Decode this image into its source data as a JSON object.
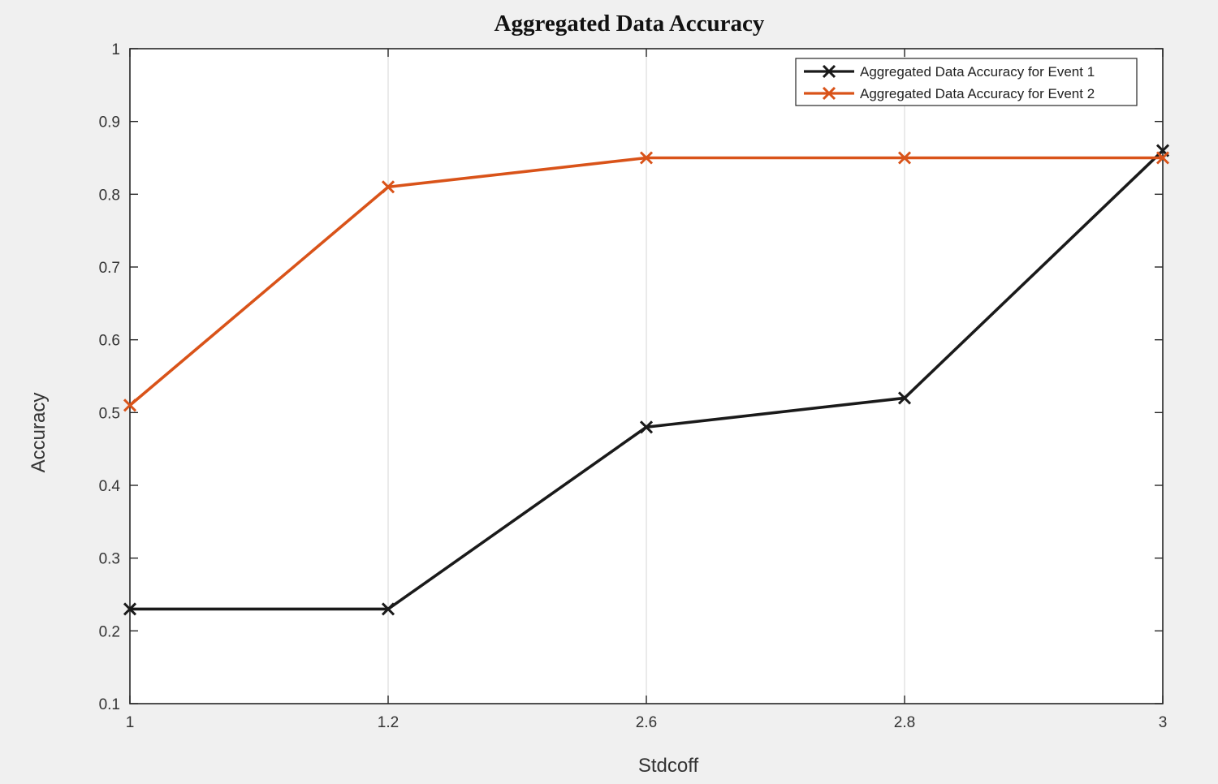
{
  "chart_data": {
    "type": "line",
    "title": "Aggregated Data Accuracy",
    "xlabel": "Stdcoff",
    "ylabel": "Accuracy",
    "x": [
      "1",
      "1.2",
      "2.6",
      "2.8",
      "3"
    ],
    "yticks": [
      "0.1",
      "0.2",
      "0.3",
      "0.4",
      "0.5",
      "0.6",
      "0.7",
      "0.8",
      "0.9",
      "1"
    ],
    "ylim": [
      0.1,
      1
    ],
    "grid": "vertical",
    "legend_position": "top-right",
    "marker": "x",
    "series": [
      {
        "name": "Aggregated Data Accuracy for Event 1",
        "color": "#1a1a1a",
        "values": [
          0.23,
          0.23,
          0.48,
          0.52,
          0.86
        ]
      },
      {
        "name": "Aggregated Data Accuracy for Event 2",
        "color": "#d95319",
        "values": [
          0.51,
          0.81,
          0.85,
          0.85,
          0.85
        ]
      }
    ]
  }
}
